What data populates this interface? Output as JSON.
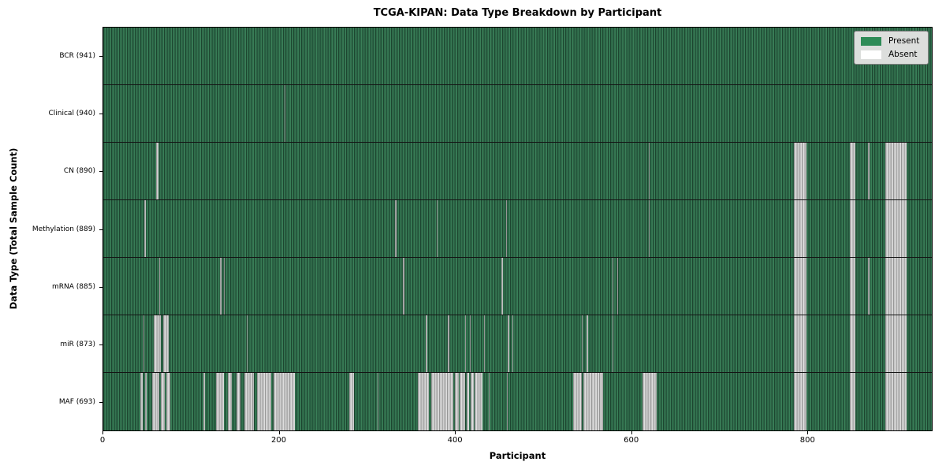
{
  "chart_data": {
    "type": "heatmap",
    "title": "TCGA-KIPAN: Data Type Breakdown by Participant",
    "xlabel": "Participant",
    "ylabel": "Data Type (Total Sample Count)",
    "x_range": [
      0,
      942
    ],
    "x_ticks": [
      "0",
      "200",
      "400",
      "600",
      "800"
    ],
    "x_tick_values": [
      0,
      200,
      400,
      600,
      800
    ],
    "grid": "row-separators-only",
    "legend_position": "upper-right-inside",
    "legend": {
      "present_label": "Present",
      "absent_label": "Absent"
    },
    "colors": {
      "present": "#2e8b57",
      "absent": "#ffffff",
      "absent_rendered": "#bdbdbd",
      "legend_background": "#dcdedc",
      "row_separator": "#141414"
    },
    "rows": [
      {
        "label": "BCR (941)",
        "data_type": "BCR",
        "total_samples": 941,
        "absent_ranges": []
      },
      {
        "label": "Clinical (940)",
        "data_type": "Clinical",
        "total_samples": 940,
        "absent_ranges": [
          [
            206,
            207.2
          ]
        ]
      },
      {
        "label": "CN (890)",
        "data_type": "CN",
        "total_samples": 890,
        "absent_ranges": [
          [
            60,
            63
          ],
          [
            620,
            621.2
          ],
          [
            785,
            799.5
          ],
          [
            849,
            855
          ],
          [
            869.8,
            871
          ],
          [
            889,
            913
          ]
        ]
      },
      {
        "label": "Methylation (889)",
        "data_type": "Methylation",
        "total_samples": 889,
        "absent_ranges": [
          [
            47,
            48.2
          ],
          [
            332,
            333.2
          ],
          [
            379,
            380.2
          ],
          [
            458,
            459.2
          ],
          [
            620,
            621.2
          ],
          [
            785,
            799.5
          ],
          [
            849,
            855
          ],
          [
            889,
            913
          ]
        ]
      },
      {
        "label": "mRNA (885)",
        "data_type": "mRNA",
        "total_samples": 885,
        "absent_ranges": [
          [
            63.5,
            64.7
          ],
          [
            133,
            134.2
          ],
          [
            136.8,
            138
          ],
          [
            341,
            342.2
          ],
          [
            453,
            454.2
          ],
          [
            579,
            580.2
          ],
          [
            584,
            585.2
          ],
          [
            785,
            799.5
          ],
          [
            849,
            855
          ],
          [
            869.8,
            871
          ],
          [
            889,
            913
          ]
        ]
      },
      {
        "label": "miR (873)",
        "data_type": "miR",
        "total_samples": 873,
        "absent_ranges": [
          [
            45.8,
            47
          ],
          [
            57.5,
            65.5
          ],
          [
            68.5,
            74
          ],
          [
            163,
            164.2
          ],
          [
            367,
            368.2
          ],
          [
            392,
            393.2
          ],
          [
            411,
            412.2
          ],
          [
            416.8,
            418
          ],
          [
            433,
            434.2
          ],
          [
            460,
            461.2
          ],
          [
            464.8,
            466
          ],
          [
            544,
            545.2
          ],
          [
            549.8,
            551
          ],
          [
            579,
            580.2
          ],
          [
            785,
            799.5
          ],
          [
            849,
            855
          ],
          [
            889,
            913
          ]
        ]
      },
      {
        "label": "MAF (693)",
        "data_type": "MAF",
        "total_samples": 693,
        "absent_ranges": [
          [
            42,
            45
          ],
          [
            47.5,
            49.5
          ],
          [
            56,
            64
          ],
          [
            65.5,
            70
          ],
          [
            71.5,
            76
          ],
          [
            113.8,
            115.3
          ],
          [
            128,
            137.5
          ],
          [
            141.5,
            146
          ],
          [
            151.5,
            156
          ],
          [
            160.5,
            171.5
          ],
          [
            174.5,
            191
          ],
          [
            194,
            217.5
          ],
          [
            280,
            285.2
          ],
          [
            311.5,
            313
          ],
          [
            358,
            370.5
          ],
          [
            372.5,
            398
          ],
          [
            399.5,
            404
          ],
          [
            405.5,
            411.5
          ],
          [
            413,
            416
          ],
          [
            417.5,
            421
          ],
          [
            422.5,
            431
          ],
          [
            438,
            439.2
          ],
          [
            459,
            460.2
          ],
          [
            534,
            544
          ],
          [
            545.8,
            568.5
          ],
          [
            613,
            629.5
          ],
          [
            785,
            799.5
          ],
          [
            849,
            855
          ],
          [
            889,
            913
          ]
        ]
      }
    ]
  }
}
